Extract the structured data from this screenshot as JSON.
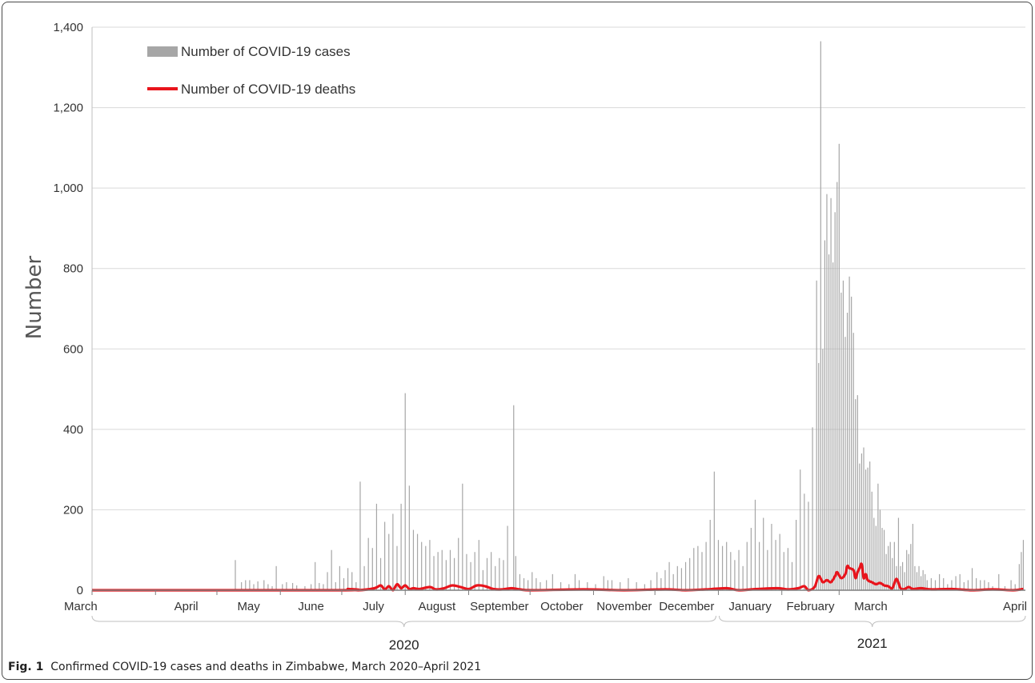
{
  "chart_data": {
    "type": "bar",
    "ylabel": "Number",
    "ylim": [
      0,
      1400
    ],
    "y_ticks": [
      "0",
      "200",
      "400",
      "600",
      "800",
      "1,000",
      "1,200",
      "1,400"
    ],
    "grid": true,
    "legend_position": "top-left",
    "months": [
      "March",
      "April",
      "May",
      "June",
      "July",
      "August",
      "September",
      "October",
      "November",
      "December",
      "January",
      "February",
      "March",
      "April"
    ],
    "years": [
      "2020",
      "2021"
    ],
    "series": [
      {
        "name": "Number of COVID-19 cases",
        "kind": "bar",
        "color": "#a6a6a6",
        "points": [
          [
            70,
            75
          ],
          [
            73,
            20
          ],
          [
            75,
            25
          ],
          [
            77,
            25
          ],
          [
            79,
            15
          ],
          [
            81,
            22
          ],
          [
            84,
            25
          ],
          [
            86,
            15
          ],
          [
            88,
            10
          ],
          [
            90,
            60
          ],
          [
            93,
            15
          ],
          [
            95,
            20
          ],
          [
            98,
            18
          ],
          [
            100,
            12
          ],
          [
            104,
            10
          ],
          [
            107,
            15
          ],
          [
            109,
            70
          ],
          [
            111,
            18
          ],
          [
            113,
            15
          ],
          [
            115,
            45
          ],
          [
            117,
            100
          ],
          [
            119,
            20
          ],
          [
            121,
            60
          ],
          [
            123,
            30
          ],
          [
            125,
            55
          ],
          [
            127,
            45
          ],
          [
            129,
            20
          ],
          [
            131,
            270
          ],
          [
            133,
            60
          ],
          [
            135,
            130
          ],
          [
            137,
            105
          ],
          [
            139,
            215
          ],
          [
            141,
            80
          ],
          [
            143,
            170
          ],
          [
            145,
            140
          ],
          [
            147,
            190
          ],
          [
            149,
            110
          ],
          [
            151,
            215
          ],
          [
            153,
            490
          ],
          [
            155,
            260
          ],
          [
            157,
            150
          ],
          [
            159,
            140
          ],
          [
            161,
            120
          ],
          [
            163,
            110
          ],
          [
            165,
            125
          ],
          [
            167,
            85
          ],
          [
            169,
            95
          ],
          [
            171,
            100
          ],
          [
            173,
            75
          ],
          [
            175,
            100
          ],
          [
            177,
            80
          ],
          [
            179,
            130
          ],
          [
            181,
            265
          ],
          [
            183,
            90
          ],
          [
            185,
            70
          ],
          [
            187,
            95
          ],
          [
            189,
            125
          ],
          [
            191,
            50
          ],
          [
            193,
            80
          ],
          [
            195,
            95
          ],
          [
            197,
            60
          ],
          [
            199,
            80
          ],
          [
            201,
            75
          ],
          [
            203,
            160
          ],
          [
            206,
            460
          ],
          [
            207,
            85
          ],
          [
            209,
            40
          ],
          [
            211,
            30
          ],
          [
            213,
            25
          ],
          [
            215,
            45
          ],
          [
            217,
            30
          ],
          [
            219,
            20
          ],
          [
            222,
            25
          ],
          [
            225,
            40
          ],
          [
            229,
            20
          ],
          [
            233,
            15
          ],
          [
            236,
            40
          ],
          [
            238,
            25
          ],
          [
            242,
            20
          ],
          [
            246,
            15
          ],
          [
            250,
            35
          ],
          [
            252,
            25
          ],
          [
            254,
            25
          ],
          [
            258,
            20
          ],
          [
            262,
            30
          ],
          [
            266,
            20
          ],
          [
            270,
            15
          ],
          [
            273,
            25
          ],
          [
            276,
            45
          ],
          [
            278,
            30
          ],
          [
            280,
            50
          ],
          [
            282,
            70
          ],
          [
            284,
            40
          ],
          [
            286,
            60
          ],
          [
            288,
            55
          ],
          [
            290,
            70
          ],
          [
            292,
            80
          ],
          [
            294,
            105
          ],
          [
            296,
            110
          ],
          [
            298,
            95
          ],
          [
            300,
            120
          ],
          [
            302,
            175
          ],
          [
            304,
            295
          ],
          [
            306,
            125
          ],
          [
            308,
            110
          ],
          [
            310,
            120
          ],
          [
            312,
            95
          ],
          [
            314,
            75
          ],
          [
            316,
            100
          ],
          [
            318,
            60
          ],
          [
            320,
            120
          ],
          [
            322,
            155
          ],
          [
            324,
            225
          ],
          [
            326,
            120
          ],
          [
            328,
            180
          ],
          [
            330,
            100
          ],
          [
            332,
            165
          ],
          [
            334,
            125
          ],
          [
            336,
            140
          ],
          [
            338,
            95
          ],
          [
            340,
            105
          ],
          [
            342,
            70
          ],
          [
            344,
            175
          ],
          [
            346,
            300
          ],
          [
            348,
            240
          ],
          [
            350,
            220
          ],
          [
            352,
            405
          ],
          [
            354,
            770
          ],
          [
            355,
            565
          ],
          [
            356,
            1365
          ],
          [
            357,
            600
          ],
          [
            358,
            870
          ],
          [
            359,
            985
          ],
          [
            360,
            835
          ],
          [
            361,
            975
          ],
          [
            362,
            815
          ],
          [
            363,
            940
          ],
          [
            364,
            1015
          ],
          [
            365,
            1110
          ],
          [
            366,
            740
          ],
          [
            367,
            770
          ],
          [
            368,
            630
          ],
          [
            369,
            690
          ],
          [
            370,
            780
          ],
          [
            371,
            730
          ],
          [
            372,
            640
          ],
          [
            373,
            475
          ],
          [
            374,
            485
          ],
          [
            375,
            315
          ],
          [
            376,
            340
          ],
          [
            377,
            355
          ],
          [
            378,
            300
          ],
          [
            379,
            305
          ],
          [
            380,
            320
          ],
          [
            381,
            245
          ],
          [
            382,
            180
          ],
          [
            383,
            160
          ],
          [
            384,
            265
          ],
          [
            385,
            200
          ],
          [
            386,
            155
          ],
          [
            387,
            150
          ],
          [
            388,
            90
          ],
          [
            389,
            110
          ],
          [
            390,
            120
          ],
          [
            391,
            80
          ],
          [
            392,
            120
          ],
          [
            393,
            60
          ],
          [
            394,
            180
          ],
          [
            395,
            60
          ],
          [
            396,
            70
          ],
          [
            397,
            45
          ],
          [
            398,
            100
          ],
          [
            399,
            90
          ],
          [
            400,
            115
          ],
          [
            401,
            165
          ],
          [
            402,
            60
          ],
          [
            403,
            45
          ],
          [
            404,
            60
          ],
          [
            405,
            35
          ],
          [
            406,
            50
          ],
          [
            407,
            40
          ],
          [
            408,
            25
          ],
          [
            410,
            30
          ],
          [
            412,
            25
          ],
          [
            414,
            40
          ],
          [
            416,
            30
          ],
          [
            418,
            15
          ],
          [
            420,
            25
          ],
          [
            422,
            35
          ],
          [
            424,
            40
          ],
          [
            426,
            20
          ],
          [
            428,
            25
          ],
          [
            430,
            55
          ],
          [
            432,
            30
          ],
          [
            434,
            25
          ],
          [
            436,
            25
          ],
          [
            438,
            20
          ],
          [
            440,
            10
          ],
          [
            443,
            40
          ],
          [
            446,
            10
          ],
          [
            449,
            25
          ],
          [
            451,
            15
          ],
          [
            453,
            65
          ],
          [
            454,
            95
          ],
          [
            455,
            125
          ]
        ]
      },
      {
        "name": "Number of COVID-19 deaths",
        "kind": "line",
        "color": "#e8141c",
        "points": [
          [
            0,
            0
          ],
          [
            120,
            0
          ],
          [
            125,
            3
          ],
          [
            130,
            0
          ],
          [
            138,
            5
          ],
          [
            141,
            12
          ],
          [
            143,
            2
          ],
          [
            145,
            10
          ],
          [
            147,
            0
          ],
          [
            149,
            15
          ],
          [
            151,
            5
          ],
          [
            153,
            12
          ],
          [
            155,
            3
          ],
          [
            157,
            5
          ],
          [
            160,
            3
          ],
          [
            165,
            8
          ],
          [
            168,
            2
          ],
          [
            172,
            5
          ],
          [
            176,
            12
          ],
          [
            180,
            8
          ],
          [
            184,
            3
          ],
          [
            188,
            12
          ],
          [
            192,
            10
          ],
          [
            196,
            3
          ],
          [
            200,
            2
          ],
          [
            205,
            5
          ],
          [
            209,
            2
          ],
          [
            215,
            0
          ],
          [
            240,
            2
          ],
          [
            260,
            0
          ],
          [
            280,
            2
          ],
          [
            290,
            0
          ],
          [
            300,
            2
          ],
          [
            310,
            5
          ],
          [
            316,
            0
          ],
          [
            325,
            3
          ],
          [
            335,
            5
          ],
          [
            340,
            2
          ],
          [
            345,
            5
          ],
          [
            348,
            10
          ],
          [
            350,
            0
          ],
          [
            353,
            8
          ],
          [
            355,
            35
          ],
          [
            357,
            20
          ],
          [
            359,
            25
          ],
          [
            361,
            20
          ],
          [
            363,
            35
          ],
          [
            364,
            45
          ],
          [
            366,
            30
          ],
          [
            368,
            40
          ],
          [
            369,
            60
          ],
          [
            370,
            55
          ],
          [
            372,
            50
          ],
          [
            373,
            30
          ],
          [
            374,
            45
          ],
          [
            375,
            55
          ],
          [
            376,
            65
          ],
          [
            377,
            30
          ],
          [
            378,
            40
          ],
          [
            379,
            25
          ],
          [
            381,
            20
          ],
          [
            383,
            15
          ],
          [
            385,
            18
          ],
          [
            387,
            12
          ],
          [
            389,
            10
          ],
          [
            391,
            5
          ],
          [
            393,
            28
          ],
          [
            395,
            5
          ],
          [
            397,
            3
          ],
          [
            399,
            8
          ],
          [
            401,
            3
          ],
          [
            405,
            5
          ],
          [
            410,
            2
          ],
          [
            420,
            3
          ],
          [
            430,
            0
          ],
          [
            440,
            2
          ],
          [
            450,
            0
          ],
          [
            455,
            3
          ]
        ]
      }
    ]
  },
  "caption": {
    "label": "Fig. 1",
    "text": "Confirmed COVID-19 cases and deaths in Zimbabwe, March 2020–April 2021"
  }
}
